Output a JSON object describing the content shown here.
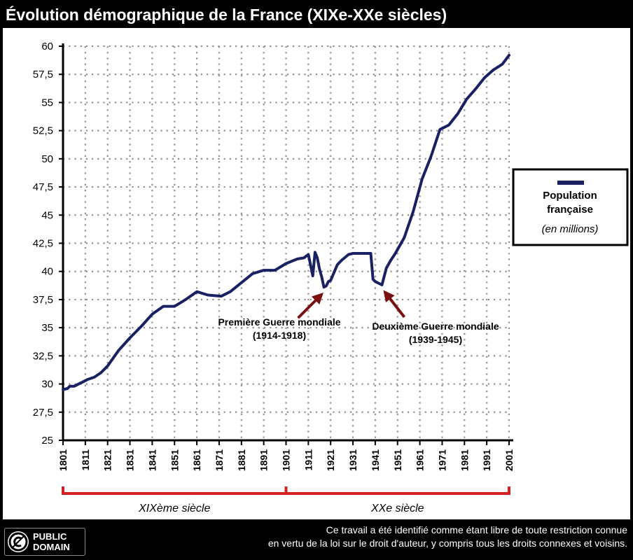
{
  "title": "Évolution démographique de la France (XIXe-XXe siècles)",
  "chart_data": {
    "type": "line",
    "title": "Évolution démographique de la France (XIXe-XXe siècles)",
    "xlim": [
      1801,
      2001
    ],
    "ylim": [
      25,
      60
    ],
    "x_ticks": [
      "1801",
      "1811",
      "1821",
      "1831",
      "1841",
      "1851",
      "1861",
      "1871",
      "1881",
      "1891",
      "1901",
      "1911",
      "1921",
      "1931",
      "1941",
      "1951",
      "1961",
      "1971",
      "1981",
      "1991",
      "2001"
    ],
    "y_ticks": [
      "25",
      "27,5",
      "30",
      "32,5",
      "35",
      "37,5",
      "40",
      "42,5",
      "45",
      "47,5",
      "50",
      "52,5",
      "55",
      "57,5",
      "60"
    ],
    "grid": true,
    "line_color": "#1a2163",
    "series": [
      {
        "name": "Population française",
        "x": [
          1801,
          1803,
          1804,
          1806,
          1808,
          1810,
          1812,
          1815,
          1818,
          1821,
          1826,
          1831,
          1836,
          1841,
          1846,
          1851,
          1856,
          1861,
          1866,
          1872,
          1876,
          1881,
          1886,
          1891,
          1896,
          1901,
          1906,
          1909,
          1911,
          1913,
          1914,
          1915,
          1916,
          1917,
          1918,
          1919,
          1920,
          1921,
          1924,
          1926,
          1929,
          1931,
          1936,
          1939,
          1940,
          1941,
          1944,
          1946,
          1948,
          1950,
          1954,
          1958,
          1962,
          1966,
          1970,
          1974,
          1978,
          1982,
          1986,
          1990,
          1994,
          1998,
          2001
        ],
        "y": [
          29.5,
          29.6,
          29.8,
          29.8,
          30.0,
          30.2,
          30.4,
          30.6,
          31.0,
          31.6,
          33.0,
          34.1,
          35.1,
          36.2,
          36.9,
          36.9,
          37.5,
          38.2,
          37.9,
          37.8,
          38.2,
          39.0,
          39.8,
          40.1,
          40.1,
          40.7,
          41.1,
          41.2,
          41.5,
          39.6,
          41.7,
          41.2,
          40.2,
          39.5,
          38.6,
          38.7,
          39.1,
          39.2,
          40.6,
          41.0,
          41.5,
          41.6,
          41.6,
          41.6,
          39.3,
          39.1,
          38.8,
          40.3,
          41.0,
          41.6,
          43.0,
          45.3,
          48.2,
          50.2,
          52.6,
          53.0,
          54.0,
          55.3,
          56.2,
          57.2,
          57.9,
          58.4,
          59.2
        ]
      }
    ],
    "annotations": [
      {
        "line1": "Première Guerre mondiale",
        "line2": "(1914-1918)",
        "target_x": 1918,
        "target_y": 38.6
      },
      {
        "line1": "Deuxième Guerre mondiale",
        "line2": "(1939-1945)",
        "target_x": 1944,
        "target_y": 38.8
      }
    ],
    "periods": [
      {
        "label": "XIXème siècle",
        "from": 1801,
        "to": 1901
      },
      {
        "label": "XXe siècle",
        "from": 1901,
        "to": 2001
      }
    ],
    "legend": {
      "label1": "Population",
      "label2": "française",
      "unit": "(en millions)",
      "placement": "right"
    }
  },
  "footer": {
    "line1": "Ce travail a été identifié comme étant libre de toute restriction connue",
    "line2": "en vertu de la loi sur le droit d'auteur, y compris tous les droits connexes et voisins."
  },
  "badge": {
    "line1": "PUBLIC",
    "line2": "DOMAIN",
    "icon": "public-domain-icon"
  },
  "colors": {
    "frame": "#000000",
    "panel": "#ffffff",
    "line": "#1a2163",
    "arrow": "#7a1010",
    "period_bracket": "#d22020",
    "grid": "#909090"
  }
}
